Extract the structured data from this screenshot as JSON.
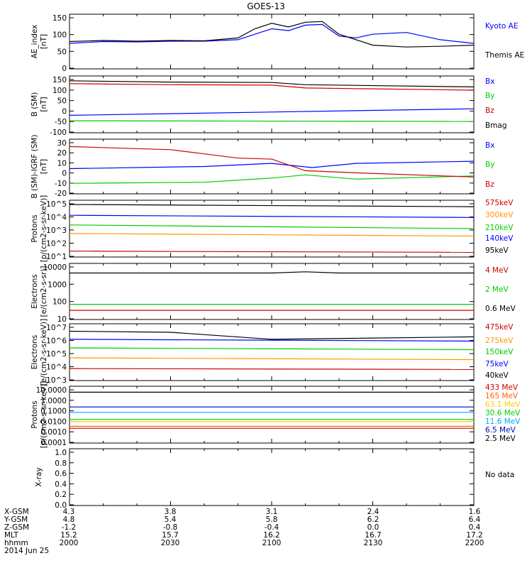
{
  "title": "GOES-13",
  "chart_data": [
    {
      "type": "line",
      "ylabel": "AE_index\n[nT]",
      "yticks": [
        "150",
        "100",
        "50",
        "0"
      ],
      "ylim": [
        0,
        150
      ],
      "series": [
        {
          "name": "Kyoto AE",
          "color": "#0000ff",
          "x": [
            2000,
            2010,
            2020,
            2030,
            2040,
            2050,
            2055,
            2100,
            2105,
            2110,
            2115,
            2120,
            2125,
            2130,
            2140,
            2150,
            2200
          ],
          "values": [
            70,
            75,
            74,
            76,
            76,
            80,
            95,
            110,
            105,
            120,
            122,
            90,
            85,
            95,
            100,
            80,
            70
          ]
        },
        {
          "name": "Themis AE",
          "color": "#000000",
          "x": [
            2000,
            2010,
            2020,
            2030,
            2040,
            2050,
            2055,
            2100,
            2105,
            2110,
            2115,
            2120,
            2125,
            2130,
            2140,
            2150,
            2200
          ],
          "values": [
            75,
            78,
            76,
            78,
            77,
            85,
            110,
            125,
            115,
            128,
            130,
            95,
            80,
            65,
            60,
            62,
            65
          ]
        }
      ]
    },
    {
      "type": "line",
      "ylabel": "B (SM)\n[nT]",
      "yticks": [
        "150",
        "100",
        "50",
        "0",
        "-50",
        "-100"
      ],
      "ylim": [
        -110,
        150
      ],
      "series": [
        {
          "name": "Bx",
          "color": "#0000ff",
          "x": [
            2000,
            2200
          ],
          "values": [
            -30,
            0
          ]
        },
        {
          "name": "By",
          "color": "#00cc00",
          "x": [
            2000,
            2200
          ],
          "values": [
            -55,
            -58
          ]
        },
        {
          "name": "Bz",
          "color": "#cc0000",
          "x": [
            2000,
            2030,
            2100,
            2110,
            2200
          ],
          "values": [
            115,
            110,
            108,
            95,
            85
          ]
        },
        {
          "name": "Bmag",
          "color": "#000000",
          "x": [
            2000,
            2030,
            2100,
            2110,
            2200
          ],
          "values": [
            128,
            122,
            120,
            110,
            100
          ]
        }
      ]
    },
    {
      "type": "line",
      "ylabel": "B (SM)-IGRF (SM)\n[nT]",
      "yticks": [
        "30",
        "20",
        "10",
        "0",
        "-10",
        "-20"
      ],
      "ylim": [
        -22,
        30
      ],
      "series": [
        {
          "name": "Bx",
          "color": "#0000ff",
          "x": [
            2000,
            2040,
            2100,
            2112,
            2125,
            2200
          ],
          "values": [
            2,
            4,
            7,
            3,
            7,
            9
          ]
        },
        {
          "name": "By",
          "color": "#00cc00",
          "x": [
            2000,
            2040,
            2100,
            2110,
            2125,
            2200
          ],
          "values": [
            -12,
            -11,
            -7,
            -4,
            -8,
            -5
          ]
        },
        {
          "name": "Bz",
          "color": "#cc0000",
          "x": [
            2000,
            2030,
            2040,
            2050,
            2100,
            2110,
            2125,
            2200
          ],
          "values": [
            23,
            20,
            16,
            12,
            11,
            0,
            -2,
            -6
          ]
        }
      ]
    },
    {
      "type": "line",
      "log": true,
      "ylabel": "Protons\n[p/(cm2-s-sr-keV)]",
      "yticks": [
        "10^5",
        "10^4",
        "10^3",
        "10^2",
        "10^1"
      ],
      "ylim": [
        5,
        200000
      ],
      "series": [
        {
          "name": "575keV",
          "color": "#cc0000",
          "x": [
            2000,
            2200
          ],
          "values": [
            15,
            12
          ]
        },
        {
          "name": "300keV",
          "color": "#ff9900",
          "x": [
            2000,
            2200
          ],
          "values": [
            400,
            250
          ]
        },
        {
          "name": "210keV",
          "color": "#00cc00",
          "x": [
            2000,
            2200
          ],
          "values": [
            2000,
            1000
          ]
        },
        {
          "name": "140keV",
          "color": "#0000ff",
          "x": [
            2000,
            2200
          ],
          "values": [
            12000,
            8000
          ]
        },
        {
          "name": "95keV",
          "color": "#000000",
          "x": [
            2000,
            2200
          ],
          "values": [
            90000,
            60000
          ]
        }
      ]
    },
    {
      "type": "line",
      "log": true,
      "ylabel": "Electrons\n[e/(cm2-s-sr)]",
      "yticks": [
        "10000",
        "1000",
        "100",
        "10"
      ],
      "ylim": [
        3,
        15000
      ],
      "series": [
        {
          "name": "4 MeV",
          "color": "#cc0000",
          "x": [
            2000,
            2200
          ],
          "values": [
            12,
            12
          ]
        },
        {
          "name": "2 MeV",
          "color": "#00cc00",
          "x": [
            2000,
            2200
          ],
          "values": [
            30,
            30
          ]
        },
        {
          "name": "0.6 MeV",
          "color": "#000000",
          "x": [
            2000,
            2100,
            2110,
            2120,
            2200
          ],
          "values": [
            3500,
            3500,
            4200,
            3500,
            3500
          ]
        }
      ]
    },
    {
      "type": "line",
      "log": true,
      "ylabel": "Electrons\n[e/(cm2-s-sr-keV)]",
      "yticks": [
        "10^7",
        "10^6",
        "10^5",
        "10^4",
        "10^3"
      ],
      "ylim": [
        1000,
        10000000
      ],
      "series": [
        {
          "name": "475keV",
          "color": "#cc0000",
          "x": [
            2000,
            2200
          ],
          "values": [
            7000,
            6000
          ]
        },
        {
          "name": "275keV",
          "color": "#ff9900",
          "x": [
            2000,
            2200
          ],
          "values": [
            40000,
            30000
          ]
        },
        {
          "name": "150keV",
          "color": "#00cc00",
          "x": [
            2000,
            2200
          ],
          "values": [
            200000,
            150000
          ]
        },
        {
          "name": "75keV",
          "color": "#0000ff",
          "x": [
            2000,
            2200
          ],
          "values": [
            800000,
            600000
          ]
        },
        {
          "name": "40keV",
          "color": "#000000",
          "x": [
            2000,
            2030,
            2100,
            2200
          ],
          "values": [
            3000000,
            2500000,
            800000,
            1200000
          ]
        }
      ]
    },
    {
      "type": "line",
      "log": true,
      "ylabel": "Protons\n[p/(cm2-s-sr-keV)]",
      "yticks": [
        "10.0000",
        "1.0000",
        "0.1000",
        "0.0100",
        "0.0010",
        "0.0001"
      ],
      "ylim": [
        0.0001,
        10
      ],
      "series": [
        {
          "name": "433 MeV",
          "color": "#cc0000",
          "x": [
            2000,
            2200
          ],
          "values": [
            0.002,
            0.002
          ]
        },
        {
          "name": "165 MeV",
          "color": "#ff6600",
          "x": [
            2000,
            2200
          ],
          "values": [
            0.003,
            0.003
          ]
        },
        {
          "name": "63.1 MeV",
          "color": "#ffcc00",
          "x": [
            2000,
            2200
          ],
          "values": [
            0.008,
            0.008
          ]
        },
        {
          "name": "30.6 MeV",
          "color": "#00cc00",
          "x": [
            2000,
            2200
          ],
          "values": [
            0.012,
            0.012
          ]
        },
        {
          "name": "11.6 MeV",
          "color": "#00aaff",
          "x": [
            2000,
            2200
          ],
          "values": [
            0.05,
            0.05
          ]
        },
        {
          "name": "6.5 MeV",
          "color": "#0000cc",
          "x": [
            2000,
            2200
          ],
          "values": [
            0.15,
            0.15
          ]
        },
        {
          "name": "2.5 MeV",
          "color": "#000000",
          "x": [
            2000,
            2200
          ],
          "values": [
            3,
            3
          ]
        }
      ]
    },
    {
      "type": "line",
      "ylabel": "X-ray",
      "yticks": [
        "1.0",
        "0.8",
        "0.6",
        "0.4",
        "0.2",
        "0.0"
      ],
      "ylim": [
        0,
        1
      ],
      "series": [],
      "note": "No data"
    }
  ],
  "footer": {
    "row_labels": [
      "X-GSM",
      "Y-GSM",
      "Z-GSM",
      "MLT",
      "hhmm",
      "2014 Jun 25"
    ],
    "columns": [
      [
        "4.3",
        "4.8",
        "-1.2",
        "15.2",
        "2000"
      ],
      [
        "3.8",
        "5.4",
        "-0.8",
        "15.7",
        "2030"
      ],
      [
        "3.1",
        "5.8",
        "-0.4",
        "16.2",
        "2100"
      ],
      [
        "2.4",
        "6.2",
        "0.0",
        "16.7",
        "2130"
      ],
      [
        "1.6",
        "6.4",
        "0.4",
        "17.2",
        "2200"
      ]
    ]
  }
}
